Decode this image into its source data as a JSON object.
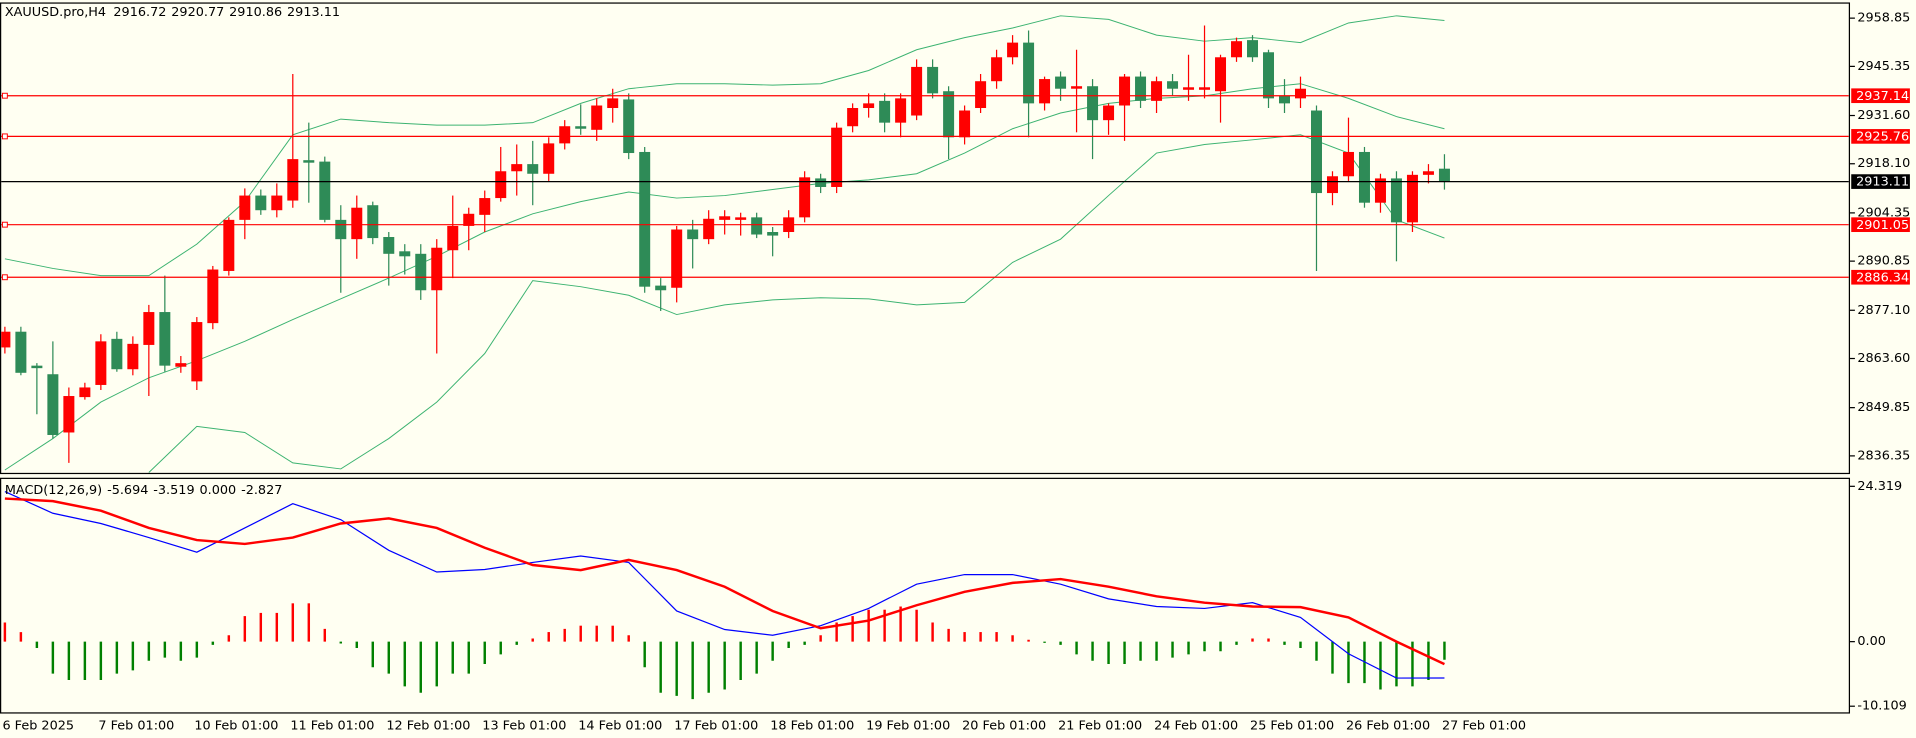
{
  "chart_data": [
    {
      "type": "candlestick",
      "title": "XAUUSD.pro,H4",
      "header_values": [
        2916.72,
        2920.77,
        2910.86,
        2913.11
      ],
      "categories": [
        "6 Feb 2025",
        null,
        null,
        null,
        null,
        null,
        "7 Feb 01:00",
        null,
        null,
        null,
        null,
        null,
        "10 Feb 01:00",
        null,
        null,
        null,
        null,
        null,
        "11 Feb 01:00",
        null,
        null,
        null,
        null,
        null,
        "12 Feb 01:00",
        null,
        null,
        null,
        null,
        null,
        "13 Feb 01:00",
        null,
        null,
        null,
        null,
        null,
        "14 Feb 01:00",
        null,
        null,
        null,
        null,
        null,
        "17 Feb 01:00",
        null,
        null,
        null,
        null,
        null,
        "18 Feb 01:00",
        null,
        null,
        null,
        null,
        null,
        "19 Feb 01:00",
        null,
        null,
        null,
        null,
        null,
        "20 Feb 01:00",
        null,
        null,
        null,
        null,
        null,
        "21 Feb 01:00",
        null,
        null,
        null,
        null,
        null,
        "24 Feb 01:00",
        null,
        null,
        null,
        null,
        null,
        "25 Feb 01:00",
        null,
        null,
        null,
        null,
        null,
        "26 Feb 01:00",
        null,
        null,
        null,
        null,
        null,
        "27 Feb 01:00"
      ],
      "open": [
        2866.7,
        2871.1,
        2861.6,
        2859.2,
        2842.9,
        2852.8,
        2856.2,
        2869.1,
        2860.6,
        2867.4,
        2876.6,
        2861.3,
        2857.2,
        2873.5,
        2888.1,
        2902.4,
        2909.2,
        2905.1,
        2907.8,
        2919.1,
        2918.7,
        2902.4,
        2897.0,
        2906.5,
        2897.6,
        2893.6,
        2892.9,
        2882.7,
        2893.9,
        2900.7,
        2903.8,
        2908.5,
        2916.0,
        2918.0,
        2915.3,
        2923.8,
        2928.6,
        2927.6,
        2933.7,
        2936.1,
        2921.4,
        2884.0,
        2883.4,
        2899.7,
        2897.0,
        2902.4,
        2902.4,
        2903.1,
        2899.0,
        2899.0,
        2903.1,
        2914.0,
        2911.6,
        2928.6,
        2933.7,
        2935.7,
        2929.6,
        2931.6,
        2945.2,
        2938.4,
        2925.5,
        2933.7,
        2941.2,
        2947.9,
        2952.0,
        2935.0,
        2942.5,
        2939.1,
        2939.8,
        2930.3,
        2934.4,
        2942.5,
        2935.7,
        2941.2,
        2938.8,
        2938.8,
        2938.4,
        2947.9,
        2952.7,
        2949.3,
        2937.1,
        2936.4,
        2933.0,
        2909.9,
        2914.6,
        2921.4,
        2907.2,
        2914.0,
        2901.7,
        2915.0,
        2916.72
      ],
      "high": [
        2872.5,
        2872.5,
        2862.3,
        2868.4,
        2855.5,
        2856.8,
        2870.4,
        2871.1,
        2869.8,
        2878.6,
        2886.8,
        2864.3,
        2875.2,
        2889.5,
        2903.1,
        2911.2,
        2910.9,
        2912.6,
        2943.2,
        2929.6,
        2920.1,
        2906.5,
        2909.2,
        2907.5,
        2899.0,
        2895.6,
        2895.6,
        2897.0,
        2909.2,
        2905.8,
        2910.6,
        2922.8,
        2923.5,
        2924.5,
        2925.5,
        2930.3,
        2934.7,
        2936.4,
        2939.1,
        2937.8,
        2922.8,
        2886.1,
        2900.7,
        2902.4,
        2905.1,
        2905.1,
        2904.4,
        2904.4,
        2900.4,
        2905.1,
        2916.0,
        2915.3,
        2929.6,
        2935.0,
        2937.8,
        2937.8,
        2937.8,
        2947.3,
        2947.3,
        2939.8,
        2934.4,
        2943.2,
        2950.0,
        2954.1,
        2955.4,
        2942.5,
        2943.9,
        2950.0,
        2941.8,
        2935.0,
        2943.2,
        2943.9,
        2942.5,
        2943.2,
        2948.6,
        2956.8,
        2948.6,
        2953.4,
        2954.1,
        2950.0,
        2941.8,
        2942.5,
        2934.4,
        2916.0,
        2931.0,
        2922.8,
        2915.3,
        2916.0,
        2916.0,
        2918.0,
        2920.77
      ],
      "low": [
        2865.0,
        2858.9,
        2848.0,
        2841.2,
        2834.4,
        2852.1,
        2854.8,
        2859.9,
        2858.9,
        2853.1,
        2859.9,
        2859.6,
        2854.8,
        2871.8,
        2886.8,
        2897.0,
        2903.8,
        2903.1,
        2905.8,
        2907.2,
        2901.7,
        2882.0,
        2891.5,
        2895.6,
        2884.0,
        2887.1,
        2880.0,
        2865.0,
        2886.1,
        2893.9,
        2899.0,
        2907.5,
        2909.2,
        2906.5,
        2913.3,
        2922.1,
        2926.2,
        2924.5,
        2929.6,
        2919.4,
        2882.0,
        2876.9,
        2879.3,
        2888.8,
        2895.6,
        2898.3,
        2898.0,
        2897.3,
        2892.2,
        2897.3,
        2901.7,
        2909.9,
        2909.9,
        2926.9,
        2931.0,
        2926.9,
        2925.5,
        2930.3,
        2936.4,
        2919.4,
        2923.5,
        2932.3,
        2939.1,
        2945.9,
        2925.5,
        2933.0,
        2935.7,
        2926.9,
        2919.4,
        2926.2,
        2924.5,
        2933.7,
        2932.3,
        2937.1,
        2935.7,
        2936.4,
        2929.6,
        2946.6,
        2946.6,
        2933.7,
        2932.3,
        2933.7,
        2888.1,
        2906.5,
        2913.3,
        2905.8,
        2904.4,
        2890.8,
        2899.0,
        2912.6,
        2910.86
      ],
      "close": [
        2871.1,
        2859.6,
        2860.9,
        2842.2,
        2853.1,
        2855.5,
        2868.4,
        2860.6,
        2867.7,
        2876.6,
        2861.6,
        2862.3,
        2873.8,
        2888.5,
        2902.4,
        2909.2,
        2905.1,
        2909.2,
        2919.4,
        2918.4,
        2902.4,
        2897.0,
        2905.8,
        2897.3,
        2892.9,
        2892.2,
        2882.7,
        2894.6,
        2900.7,
        2904.1,
        2908.5,
        2916.0,
        2918.0,
        2915.3,
        2923.8,
        2928.6,
        2927.9,
        2934.4,
        2936.4,
        2921.1,
        2883.7,
        2882.7,
        2899.7,
        2897.0,
        2902.7,
        2903.4,
        2903.1,
        2898.3,
        2898.0,
        2903.1,
        2914.3,
        2911.6,
        2928.2,
        2933.7,
        2935.0,
        2929.6,
        2936.4,
        2945.2,
        2937.8,
        2925.5,
        2933.0,
        2941.2,
        2947.9,
        2952.0,
        2935.0,
        2941.8,
        2939.1,
        2939.8,
        2930.3,
        2934.4,
        2942.5,
        2935.7,
        2941.2,
        2939.1,
        2939.5,
        2939.5,
        2947.9,
        2952.4,
        2947.9,
        2936.4,
        2935.0,
        2939.1,
        2909.9,
        2914.6,
        2921.4,
        2907.2,
        2914.0,
        2901.7,
        2915.0,
        2916.0,
        2913.11
      ],
      "up_color": "#ff0000",
      "down_color": "#2e8b57",
      "ylim": [
        2831.6,
        2962.9
      ],
      "yticks": [
        2958.85,
        2945.35,
        {
          "value": 2931.6,
          "label": "2931.60"
        },
        {
          "value": 2918.1,
          "label": "2918.10"
        },
        2904.35,
        2890.85,
        {
          "value": 2877.1,
          "label": "2877.10"
        },
        {
          "value": 2863.6,
          "label": "2863.60"
        },
        2849.85,
        2836.35
      ],
      "bands": {
        "color": "#3cb371",
        "x": [
          0,
          3,
          6,
          9,
          12,
          15,
          18,
          21,
          24,
          27,
          30,
          33,
          36,
          39,
          42,
          45,
          48,
          51,
          54,
          57,
          60,
          63,
          66,
          69,
          72,
          75,
          78,
          81,
          84,
          87,
          90
        ],
        "upper": [
          2891.5,
          2888.8,
          2886.8,
          2886.8,
          2895.6,
          2907.5,
          2926.2,
          2930.6,
          2929.6,
          2928.9,
          2928.9,
          2929.6,
          2935.0,
          2939.1,
          2940.5,
          2940.5,
          2940.1,
          2940.5,
          2944.2,
          2950.0,
          2953.4,
          2956.1,
          2959.5,
          2958.5,
          2954.1,
          2952.4,
          2953.4,
          2952.0,
          2957.5,
          2959.5,
          2958.2
        ],
        "middle": [
          2832.4,
          2841.2,
          2851.4,
          2858.2,
          2863.0,
          2868.4,
          2874.5,
          2880.3,
          2886.1,
          2892.2,
          2899.0,
          2904.1,
          2907.5,
          2910.2,
          2908.5,
          2909.2,
          2910.9,
          2912.6,
          2913.6,
          2915.3,
          2921.1,
          2927.9,
          2932.3,
          2935.0,
          2936.4,
          2937.1,
          2939.1,
          2940.5,
          2936.4,
          2931.3,
          2927.9
        ],
        "lower": [
          null,
          null,
          null,
          2831.7,
          2844.6,
          2842.9,
          2834.4,
          2832.7,
          2841.2,
          2851.4,
          2865.0,
          2885.4,
          2883.7,
          2881.3,
          2875.9,
          2878.6,
          2880.0,
          2880.6,
          2880.3,
          2878.6,
          2879.3,
          2890.5,
          2897.0,
          2909.2,
          2921.1,
          2923.5,
          2924.8,
          2926.2,
          2921.1,
          2902.4,
          2897.3
        ]
      },
      "levels": [
        {
          "value": 2937.14,
          "color": "#ff0000"
        },
        {
          "value": 2925.76,
          "color": "#ff0000"
        },
        {
          "value": 2913.11,
          "color": "#000000"
        },
        {
          "value": 2901.05,
          "color": "#ff0000"
        },
        {
          "value": 2886.34,
          "color": "#ff0000"
        }
      ]
    },
    {
      "type": "macd",
      "title": "MACD(12,26,9)",
      "header_values": [
        -5.694,
        -3.519,
        0,
        -2.827
      ],
      "header_labels": [
        "-5.694",
        "-3.519",
        "0.000",
        "-2.827"
      ],
      "histogram": {
        "values": [
          3,
          1.5,
          -1,
          -5,
          -6,
          -6,
          -6,
          -5,
          -4.5,
          -3,
          -2.5,
          -3,
          -2.5,
          -0.5,
          1,
          4,
          4.5,
          4.5,
          6,
          6,
          2,
          -0.3,
          -1,
          -4,
          -5,
          -7,
          -8,
          -7,
          -5,
          -5,
          -3.5,
          -2,
          -0.5,
          0.5,
          1.5,
          2,
          2.5,
          2.5,
          2.5,
          1,
          -4,
          -8,
          -8.5,
          -9,
          -8,
          -7.5,
          -6,
          -5,
          -3,
          -1,
          -0.5,
          1,
          3,
          4,
          5,
          5,
          5.5,
          5,
          3,
          2,
          1.5,
          1.5,
          1.5,
          1,
          0.3,
          -0.2,
          -0.5,
          -2,
          -3,
          -3.5,
          -3.5,
          -3,
          -3,
          -2.5,
          -2,
          -1.5,
          -1.5,
          -0.5,
          0.5,
          0.5,
          -0.5,
          -1,
          -3,
          -5,
          -6.5,
          -6.5,
          -7.5,
          -7,
          -7,
          -6,
          -2.827
        ],
        "pos_color": "#ff0000",
        "neg_color": "#008000"
      },
      "x": [
        0,
        3,
        6,
        9,
        12,
        15,
        18,
        21,
        24,
        27,
        30,
        33,
        36,
        39,
        42,
        45,
        48,
        51,
        54,
        57,
        60,
        63,
        66,
        69,
        72,
        75,
        78,
        81,
        84,
        87,
        90
      ],
      "series": [
        {
          "color": "#0000ff",
          "width": 1,
          "values": [
            23.5,
            20.1,
            18.5,
            16.3,
            14.0,
            17.8,
            21.6,
            19.1,
            14.3,
            10.9,
            11.3,
            12.4,
            13.4,
            12.4,
            4.8,
            1.9,
            1.0,
            2.5,
            5.2,
            9.0,
            10.5,
            10.5,
            9.0,
            6.7,
            5.5,
            5.2,
            6.1,
            3.8,
            -1.9,
            -5.7,
            -5.694
          ]
        },
        {
          "color": "#ff0000",
          "width": 2,
          "values": [
            22.4,
            22.0,
            20.5,
            17.8,
            15.9,
            15.3,
            16.3,
            18.5,
            19.3,
            17.8,
            14.7,
            12.0,
            11.2,
            12.8,
            11.2,
            8.6,
            4.8,
            2.1,
            3.3,
            5.7,
            7.8,
            9.2,
            9.8,
            8.6,
            7.1,
            6.1,
            5.5,
            5.4,
            3.8,
            0,
            -3.519
          ]
        }
      ],
      "ylim": [
        -11.26,
        25.47
      ],
      "yticks": [
        24.319,
        {
          "value": 0,
          "label": "0.00"
        },
        -10.109
      ]
    }
  ]
}
